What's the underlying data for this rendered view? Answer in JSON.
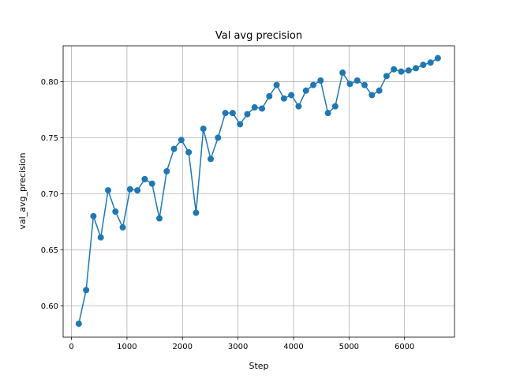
{
  "chart_data": {
    "type": "line",
    "title": "Val avg precision",
    "xlabel": "Step",
    "ylabel": "val_avg_precision",
    "xlim": [
      -150,
      6900
    ],
    "ylim": [
      0.572,
      0.832
    ],
    "xticks": [
      0,
      1000,
      2000,
      3000,
      4000,
      5000,
      6000
    ],
    "xtick_labels": [
      "0",
      "1000",
      "2000",
      "3000",
      "4000",
      "5000",
      "6000"
    ],
    "yticks": [
      0.6,
      0.65,
      0.7,
      0.75,
      0.8
    ],
    "ytick_labels": [
      "0.60",
      "0.65",
      "0.70",
      "0.75",
      "0.80"
    ],
    "grid": true,
    "marker": "circle",
    "color": "#1f77b4",
    "series": [
      {
        "x": [
          132,
          264,
          396,
          528,
          660,
          792,
          924,
          1056,
          1188,
          1320,
          1452,
          1584,
          1716,
          1848,
          1980,
          2112,
          2244,
          2376,
          2508,
          2640,
          2772,
          2904,
          3036,
          3168,
          3300,
          3432,
          3564,
          3696,
          3828,
          3960,
          4092,
          4224,
          4356,
          4488,
          4620,
          4752,
          4884,
          5016,
          5148,
          5280,
          5412,
          5544,
          5676,
          5808,
          5940,
          6072,
          6204,
          6336,
          6468,
          6600
        ],
        "y": [
          0.584,
          0.614,
          0.68,
          0.661,
          0.703,
          0.684,
          0.67,
          0.704,
          0.703,
          0.713,
          0.709,
          0.678,
          0.72,
          0.74,
          0.748,
          0.737,
          0.683,
          0.758,
          0.731,
          0.75,
          0.772,
          0.772,
          0.762,
          0.771,
          0.777,
          0.776,
          0.787,
          0.797,
          0.785,
          0.788,
          0.778,
          0.792,
          0.797,
          0.801,
          0.772,
          0.778,
          0.808,
          0.798,
          0.801,
          0.797,
          0.788,
          0.792,
          0.805,
          0.811,
          0.809,
          0.81,
          0.812,
          0.815,
          0.817,
          0.821
        ]
      }
    ]
  }
}
